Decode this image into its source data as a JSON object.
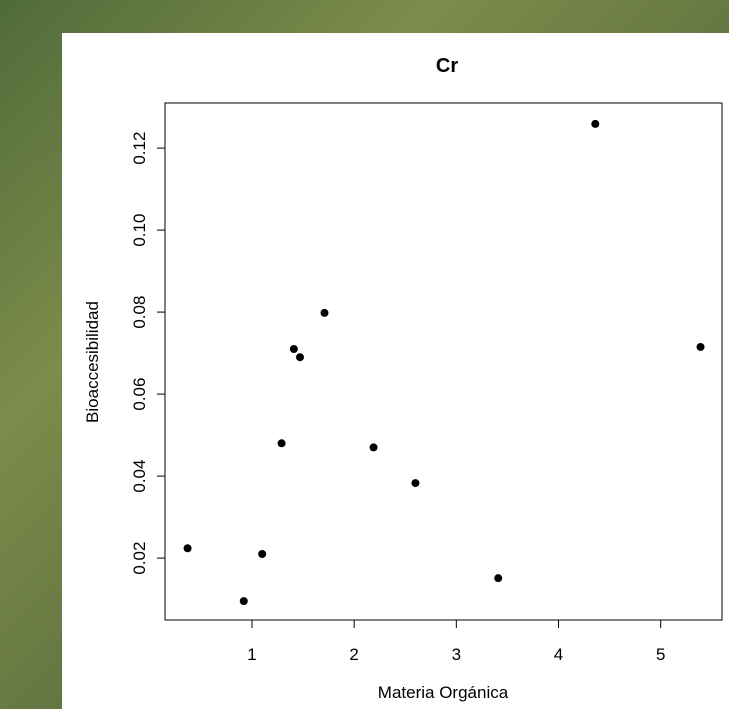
{
  "chart_data": {
    "type": "scatter",
    "title": "Cr",
    "x_label": "Materia Orgánica",
    "y_label": "Bioaccesibilidad",
    "x": [
      0.37,
      0.92,
      1.1,
      1.29,
      1.41,
      1.47,
      1.71,
      2.19,
      2.6,
      3.41,
      4.36,
      5.39
    ],
    "y": [
      0.0224,
      0.0095,
      0.021,
      0.048,
      0.071,
      0.069,
      0.0798,
      0.047,
      0.0383,
      0.0151,
      0.1259,
      0.0715
    ],
    "color": "#000000",
    "xlim": [
      0.149,
      5.6
    ],
    "xticks": [
      1,
      2,
      3,
      4,
      5
    ],
    "ylim": [
      0.0049,
      0.131
    ],
    "yticks": [
      0.02,
      0.04,
      0.06,
      0.08,
      {
        "value": 0.1,
        "label": "0.10"
      },
      0.12
    ]
  }
}
